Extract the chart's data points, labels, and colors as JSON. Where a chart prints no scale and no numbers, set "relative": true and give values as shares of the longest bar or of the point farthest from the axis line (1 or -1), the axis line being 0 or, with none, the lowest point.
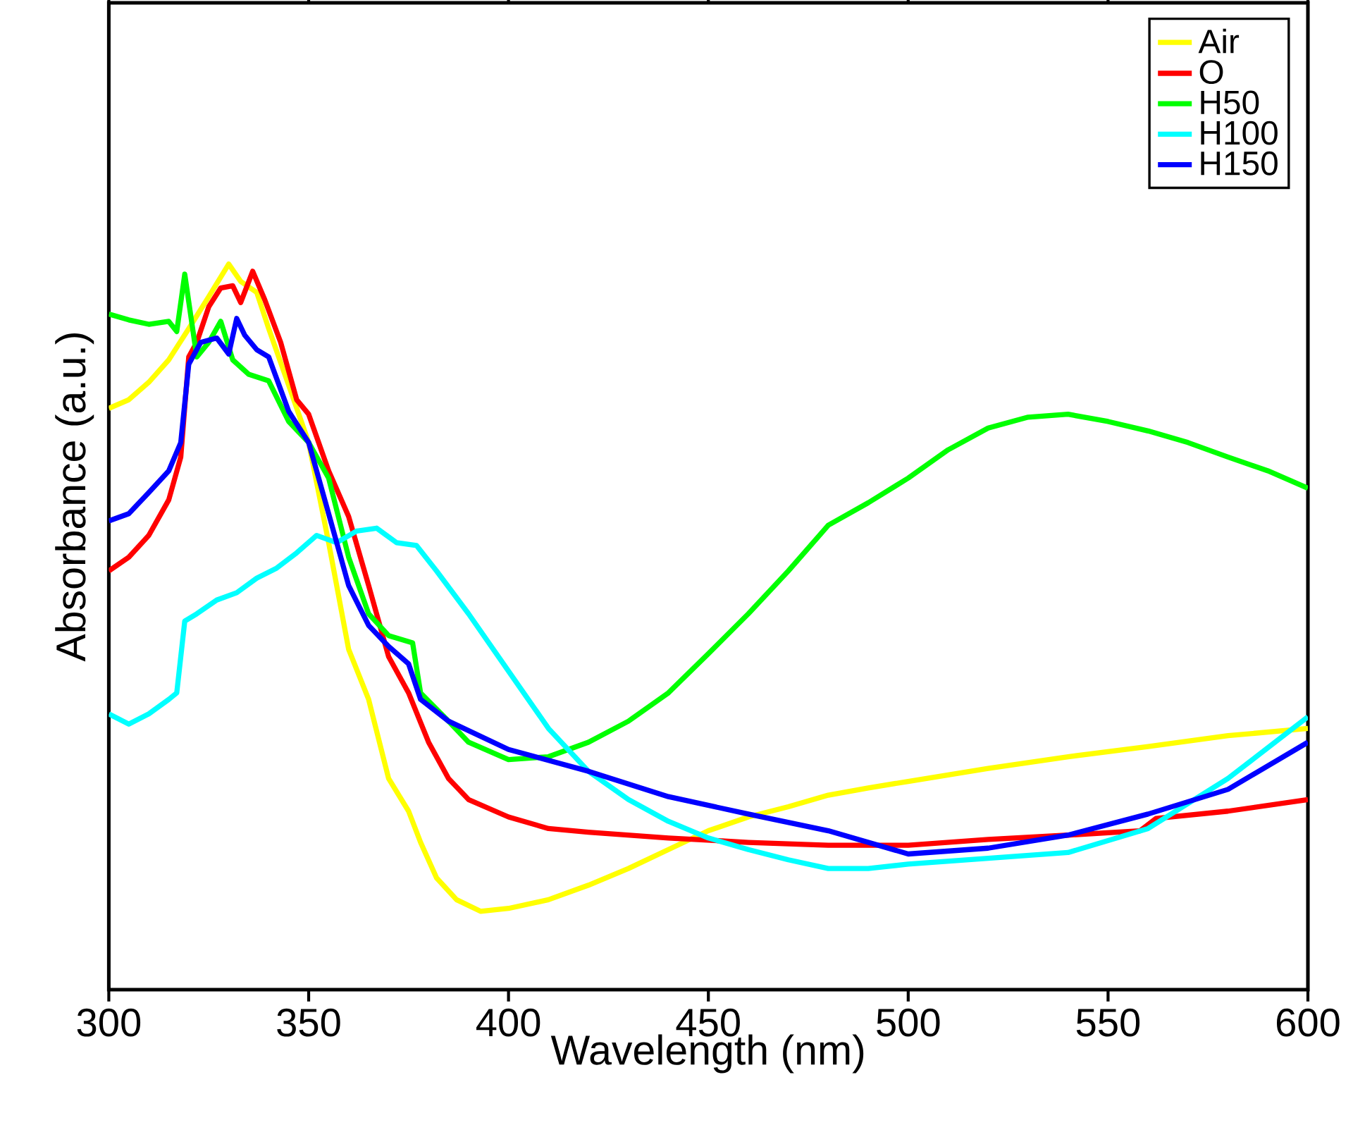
{
  "chart_data": {
    "type": "line",
    "xlabel": "Wavelength (nm)",
    "ylabel": "Absorbance (a.u.)",
    "relative": true,
    "xlim": [
      300,
      600
    ],
    "xticks": [
      300,
      350,
      400,
      450,
      500,
      550,
      600
    ],
    "tick_labels": "x",
    "legend": "top right",
    "grid": false,
    "marker": "none",
    "line_style": "solid",
    "series": [
      {
        "name": "Air",
        "color": "#ffff00",
        "x": [
          300,
          305,
          310,
          315,
          320,
          325,
          330,
          333,
          337,
          340,
          345,
          350,
          355,
          360,
          365,
          370,
          375,
          378,
          382,
          387,
          393,
          400,
          410,
          420,
          430,
          440,
          450,
          460,
          470,
          480,
          490,
          500,
          520,
          540,
          560,
          580,
          600
        ],
        "values": [
          0.801,
          0.813,
          0.837,
          0.868,
          0.911,
          0.955,
          1,
          0.976,
          0.961,
          0.911,
          0.833,
          0.754,
          0.616,
          0.469,
          0.4,
          0.291,
          0.246,
          0.203,
          0.154,
          0.124,
          0.108,
          0.112,
          0.124,
          0.144,
          0.167,
          0.193,
          0.219,
          0.238,
          0.252,
          0.268,
          0.278,
          0.287,
          0.305,
          0.321,
          0.335,
          0.35,
          0.36
        ]
      },
      {
        "name": "O",
        "color": "#ff0000",
        "x": [
          300,
          305,
          310,
          315,
          318,
          320,
          322,
          325,
          328,
          331,
          333,
          336,
          339,
          343,
          347,
          350,
          355,
          360,
          365,
          370,
          375,
          380,
          385,
          390,
          400,
          410,
          420,
          440,
          460,
          480,
          500,
          520,
          540,
          558,
          562,
          580,
          600
        ],
        "values": [
          0.577,
          0.596,
          0.626,
          0.675,
          0.734,
          0.872,
          0.892,
          0.941,
          0.967,
          0.97,
          0.947,
          0.99,
          0.951,
          0.892,
          0.813,
          0.793,
          0.715,
          0.652,
          0.557,
          0.459,
          0.409,
          0.341,
          0.291,
          0.262,
          0.238,
          0.222,
          0.217,
          0.209,
          0.203,
          0.199,
          0.199,
          0.207,
          0.213,
          0.219,
          0.236,
          0.246,
          0.262
        ]
      },
      {
        "name": "H50",
        "color": "#00ff00",
        "x": [
          300,
          305,
          310,
          315,
          317,
          319,
          322,
          325,
          328,
          331,
          335,
          340,
          345,
          350,
          355,
          360,
          365,
          370,
          376,
          378,
          385,
          390,
          400,
          410,
          420,
          430,
          440,
          450,
          460,
          470,
          480,
          490,
          500,
          510,
          520,
          530,
          540,
          550,
          560,
          570,
          580,
          590,
          600
        ],
        "values": [
          0.931,
          0.923,
          0.917,
          0.921,
          0.907,
          0.986,
          0.872,
          0.892,
          0.921,
          0.868,
          0.848,
          0.839,
          0.783,
          0.754,
          0.705,
          0.596,
          0.518,
          0.488,
          0.478,
          0.409,
          0.37,
          0.341,
          0.317,
          0.321,
          0.341,
          0.37,
          0.409,
          0.463,
          0.518,
          0.577,
          0.64,
          0.671,
          0.705,
          0.744,
          0.774,
          0.789,
          0.793,
          0.783,
          0.77,
          0.754,
          0.734,
          0.715,
          0.691
        ]
      },
      {
        "name": "H100",
        "color": "#00ffff",
        "x": [
          300,
          305,
          310,
          315,
          317,
          319,
          322,
          327,
          332,
          337,
          342,
          347,
          352,
          357,
          362,
          367,
          372,
          377,
          382,
          390,
          400,
          410,
          420,
          430,
          440,
          450,
          460,
          470,
          480,
          490,
          500,
          520,
          540,
          560,
          580,
          600
        ],
        "values": [
          0.38,
          0.366,
          0.38,
          0.4,
          0.409,
          0.508,
          0.518,
          0.537,
          0.547,
          0.567,
          0.581,
          0.602,
          0.626,
          0.616,
          0.632,
          0.636,
          0.616,
          0.612,
          0.577,
          0.518,
          0.439,
          0.36,
          0.301,
          0.262,
          0.232,
          0.209,
          0.193,
          0.179,
          0.167,
          0.167,
          0.173,
          0.181,
          0.189,
          0.222,
          0.291,
          0.376
        ]
      },
      {
        "name": "H150",
        "color": "#0000ff",
        "x": [
          300,
          305,
          310,
          315,
          318,
          320,
          323,
          327,
          330,
          332,
          334,
          337,
          340,
          345,
          350,
          355,
          360,
          365,
          370,
          375,
          378,
          385,
          400,
          420,
          440,
          460,
          480,
          500,
          520,
          540,
          560,
          580,
          600
        ],
        "values": [
          0.646,
          0.656,
          0.685,
          0.715,
          0.754,
          0.862,
          0.892,
          0.898,
          0.876,
          0.925,
          0.902,
          0.882,
          0.872,
          0.797,
          0.754,
          0.656,
          0.557,
          0.502,
          0.473,
          0.449,
          0.4,
          0.37,
          0.331,
          0.301,
          0.266,
          0.242,
          0.219,
          0.187,
          0.195,
          0.213,
          0.242,
          0.276,
          0.341
        ]
      }
    ]
  }
}
